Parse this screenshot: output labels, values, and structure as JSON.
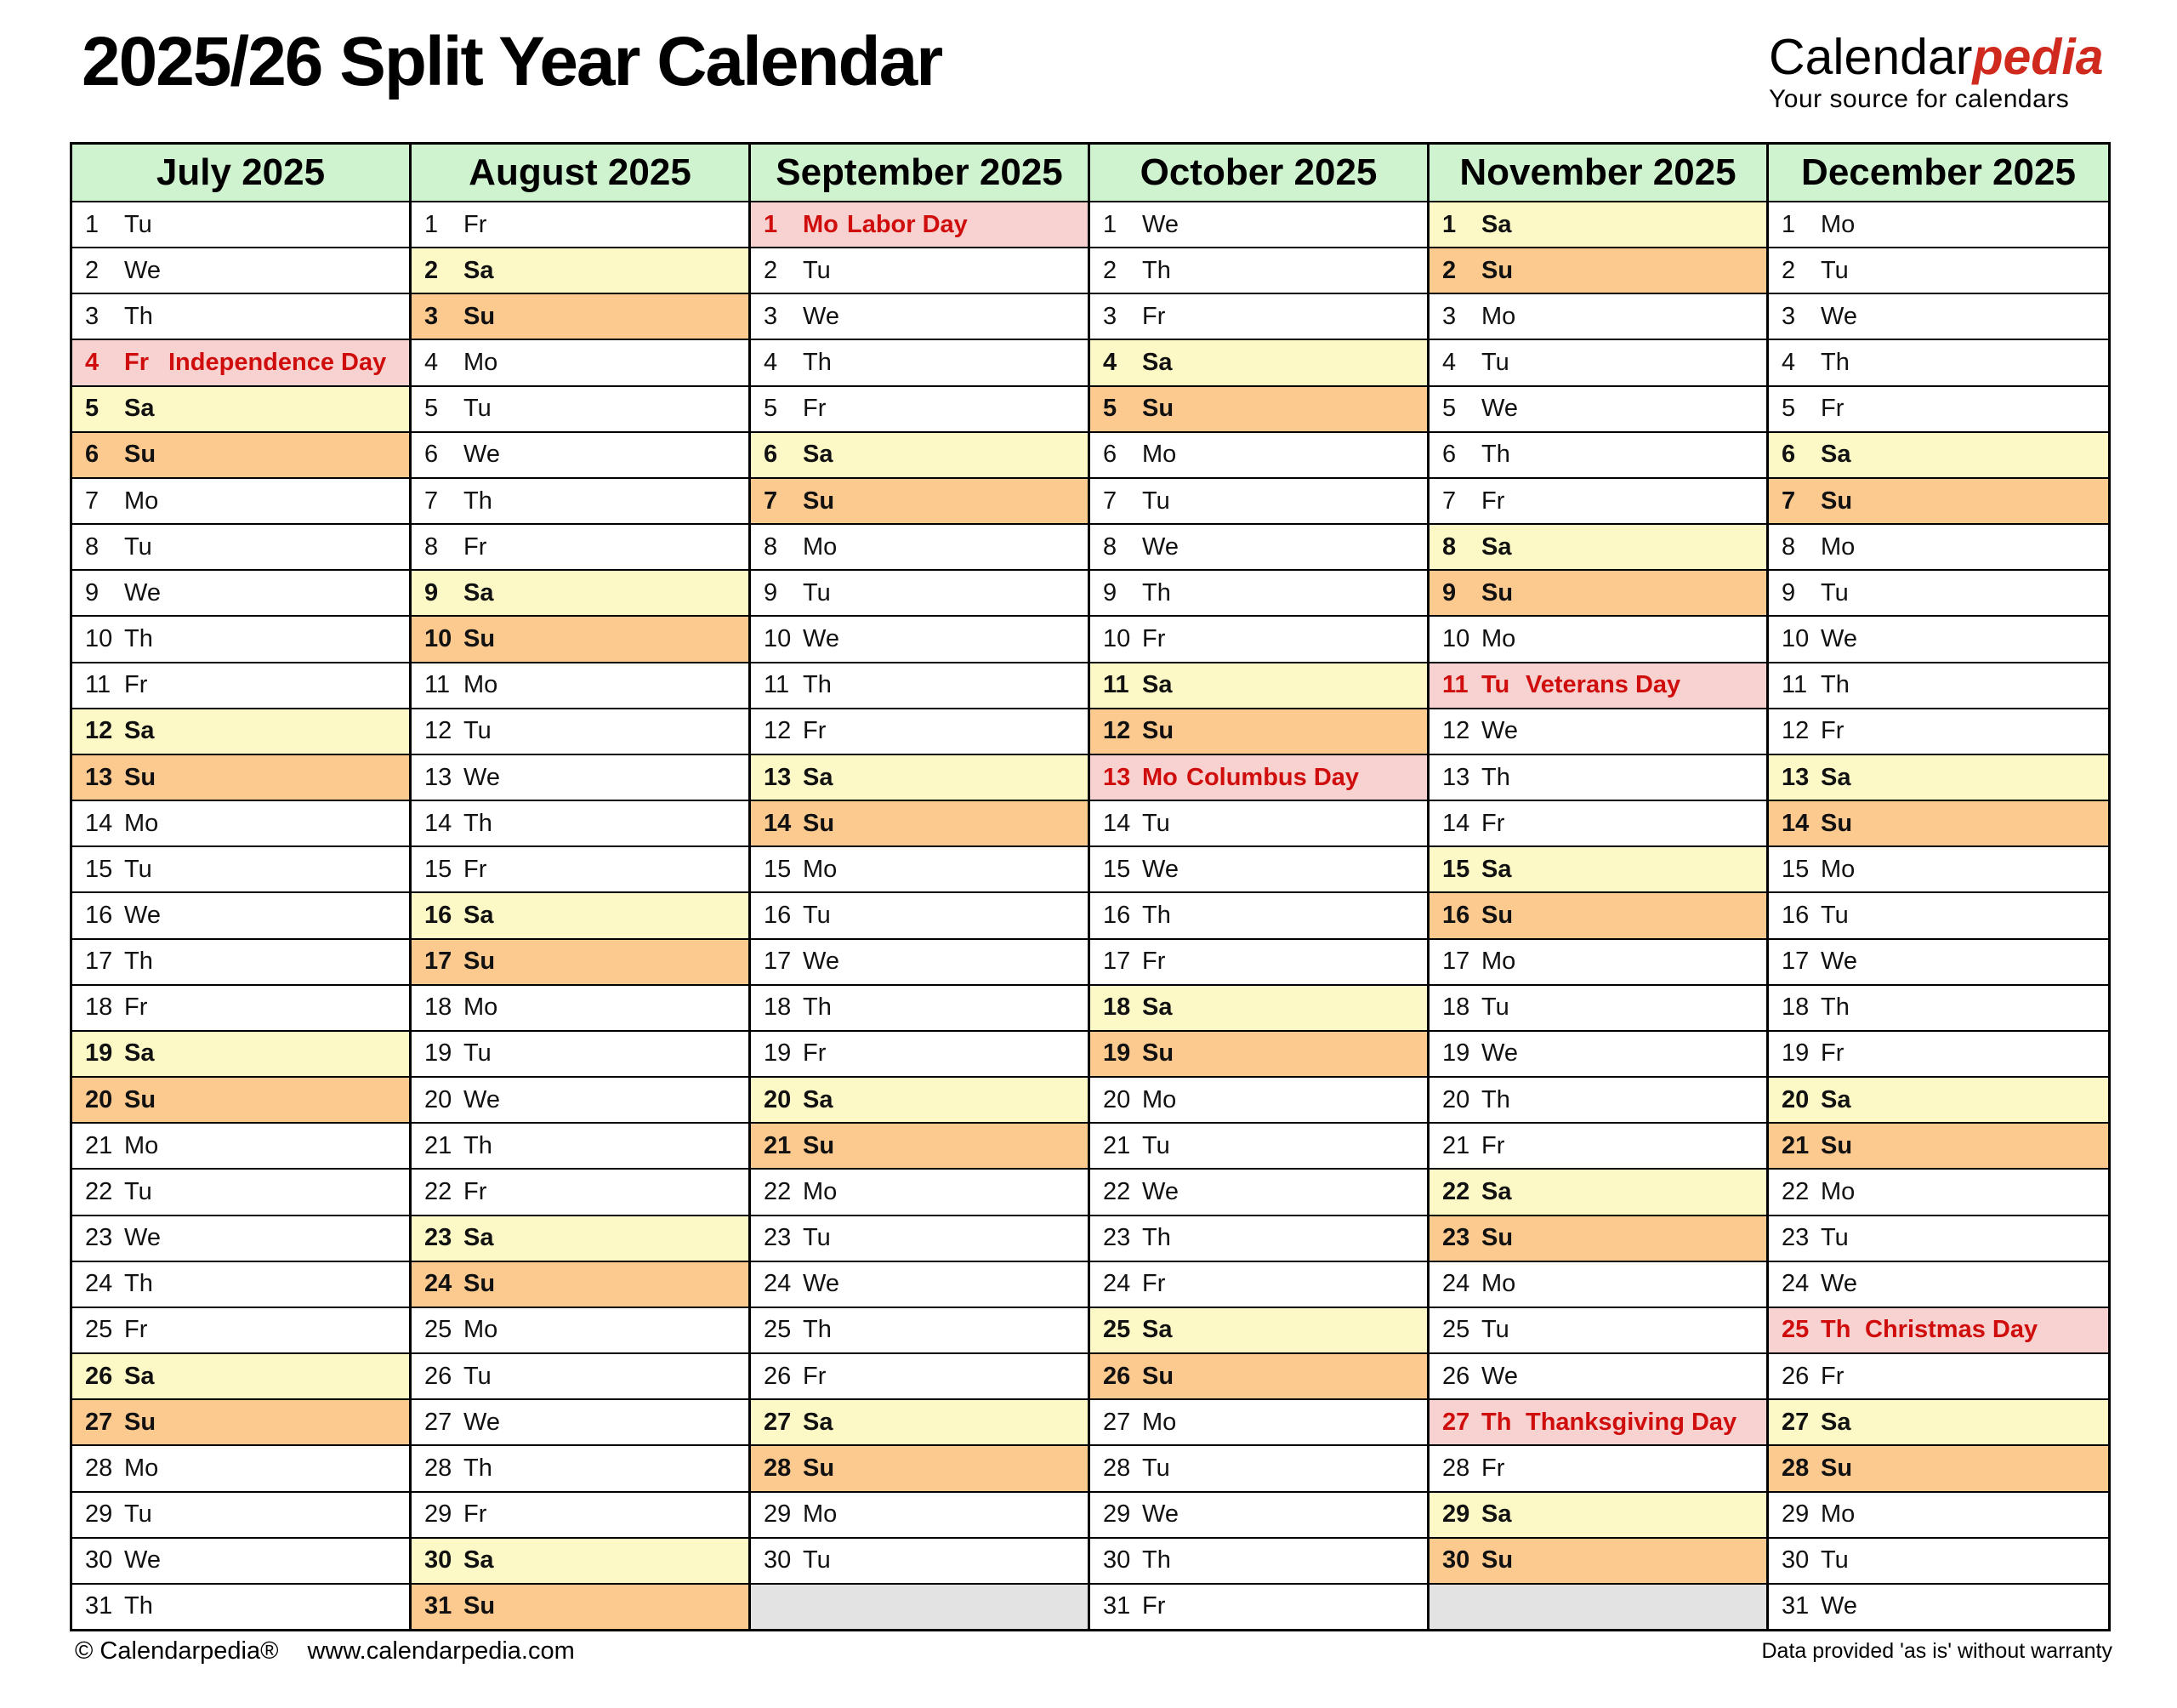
{
  "header": {
    "title": "2025/26 Split Year Calendar",
    "logo": {
      "part1": "Calendar",
      "part2": "pedia",
      "tagline": "Your source for calendars"
    }
  },
  "colors": {
    "month_header_green": "#cff2cf",
    "saturday_yellow": "#fdf9c6",
    "sunday_orange": "#fcc98f",
    "holiday_pink": "#f8d2d0",
    "holiday_red": "#cf0d0d",
    "empty_gray": "#e3e3e3",
    "logo_red": "#d02a1e"
  },
  "calendar": {
    "months": [
      {
        "name": "July 2025",
        "days": [
          {
            "d": 1,
            "w": "Tu"
          },
          {
            "d": 2,
            "w": "We"
          },
          {
            "d": 3,
            "w": "Th"
          },
          {
            "d": 4,
            "w": "Fr",
            "h": "Independence Day"
          },
          {
            "d": 5,
            "w": "Sa"
          },
          {
            "d": 6,
            "w": "Su"
          },
          {
            "d": 7,
            "w": "Mo"
          },
          {
            "d": 8,
            "w": "Tu"
          },
          {
            "d": 9,
            "w": "We"
          },
          {
            "d": 10,
            "w": "Th"
          },
          {
            "d": 11,
            "w": "Fr"
          },
          {
            "d": 12,
            "w": "Sa"
          },
          {
            "d": 13,
            "w": "Su"
          },
          {
            "d": 14,
            "w": "Mo"
          },
          {
            "d": 15,
            "w": "Tu"
          },
          {
            "d": 16,
            "w": "We"
          },
          {
            "d": 17,
            "w": "Th"
          },
          {
            "d": 18,
            "w": "Fr"
          },
          {
            "d": 19,
            "w": "Sa"
          },
          {
            "d": 20,
            "w": "Su"
          },
          {
            "d": 21,
            "w": "Mo"
          },
          {
            "d": 22,
            "w": "Tu"
          },
          {
            "d": 23,
            "w": "We"
          },
          {
            "d": 24,
            "w": "Th"
          },
          {
            "d": 25,
            "w": "Fr"
          },
          {
            "d": 26,
            "w": "Sa"
          },
          {
            "d": 27,
            "w": "Su"
          },
          {
            "d": 28,
            "w": "Mo"
          },
          {
            "d": 29,
            "w": "Tu"
          },
          {
            "d": 30,
            "w": "We"
          },
          {
            "d": 31,
            "w": "Th"
          }
        ]
      },
      {
        "name": "August 2025",
        "days": [
          {
            "d": 1,
            "w": "Fr"
          },
          {
            "d": 2,
            "w": "Sa"
          },
          {
            "d": 3,
            "w": "Su"
          },
          {
            "d": 4,
            "w": "Mo"
          },
          {
            "d": 5,
            "w": "Tu"
          },
          {
            "d": 6,
            "w": "We"
          },
          {
            "d": 7,
            "w": "Th"
          },
          {
            "d": 8,
            "w": "Fr"
          },
          {
            "d": 9,
            "w": "Sa"
          },
          {
            "d": 10,
            "w": "Su"
          },
          {
            "d": 11,
            "w": "Mo"
          },
          {
            "d": 12,
            "w": "Tu"
          },
          {
            "d": 13,
            "w": "We"
          },
          {
            "d": 14,
            "w": "Th"
          },
          {
            "d": 15,
            "w": "Fr"
          },
          {
            "d": 16,
            "w": "Sa"
          },
          {
            "d": 17,
            "w": "Su"
          },
          {
            "d": 18,
            "w": "Mo"
          },
          {
            "d": 19,
            "w": "Tu"
          },
          {
            "d": 20,
            "w": "We"
          },
          {
            "d": 21,
            "w": "Th"
          },
          {
            "d": 22,
            "w": "Fr"
          },
          {
            "d": 23,
            "w": "Sa"
          },
          {
            "d": 24,
            "w": "Su"
          },
          {
            "d": 25,
            "w": "Mo"
          },
          {
            "d": 26,
            "w": "Tu"
          },
          {
            "d": 27,
            "w": "We"
          },
          {
            "d": 28,
            "w": "Th"
          },
          {
            "d": 29,
            "w": "Fr"
          },
          {
            "d": 30,
            "w": "Sa"
          },
          {
            "d": 31,
            "w": "Su"
          }
        ]
      },
      {
        "name": "September 2025",
        "days": [
          {
            "d": 1,
            "w": "Mo",
            "h": "Labor Day"
          },
          {
            "d": 2,
            "w": "Tu"
          },
          {
            "d": 3,
            "w": "We"
          },
          {
            "d": 4,
            "w": "Th"
          },
          {
            "d": 5,
            "w": "Fr"
          },
          {
            "d": 6,
            "w": "Sa"
          },
          {
            "d": 7,
            "w": "Su"
          },
          {
            "d": 8,
            "w": "Mo"
          },
          {
            "d": 9,
            "w": "Tu"
          },
          {
            "d": 10,
            "w": "We"
          },
          {
            "d": 11,
            "w": "Th"
          },
          {
            "d": 12,
            "w": "Fr"
          },
          {
            "d": 13,
            "w": "Sa"
          },
          {
            "d": 14,
            "w": "Su"
          },
          {
            "d": 15,
            "w": "Mo"
          },
          {
            "d": 16,
            "w": "Tu"
          },
          {
            "d": 17,
            "w": "We"
          },
          {
            "d": 18,
            "w": "Th"
          },
          {
            "d": 19,
            "w": "Fr"
          },
          {
            "d": 20,
            "w": "Sa"
          },
          {
            "d": 21,
            "w": "Su"
          },
          {
            "d": 22,
            "w": "Mo"
          },
          {
            "d": 23,
            "w": "Tu"
          },
          {
            "d": 24,
            "w": "We"
          },
          {
            "d": 25,
            "w": "Th"
          },
          {
            "d": 26,
            "w": "Fr"
          },
          {
            "d": 27,
            "w": "Sa"
          },
          {
            "d": 28,
            "w": "Su"
          },
          {
            "d": 29,
            "w": "Mo"
          },
          {
            "d": 30,
            "w": "Tu"
          }
        ]
      },
      {
        "name": "October 2025",
        "days": [
          {
            "d": 1,
            "w": "We"
          },
          {
            "d": 2,
            "w": "Th"
          },
          {
            "d": 3,
            "w": "Fr"
          },
          {
            "d": 4,
            "w": "Sa"
          },
          {
            "d": 5,
            "w": "Su"
          },
          {
            "d": 6,
            "w": "Mo"
          },
          {
            "d": 7,
            "w": "Tu"
          },
          {
            "d": 8,
            "w": "We"
          },
          {
            "d": 9,
            "w": "Th"
          },
          {
            "d": 10,
            "w": "Fr"
          },
          {
            "d": 11,
            "w": "Sa"
          },
          {
            "d": 12,
            "w": "Su"
          },
          {
            "d": 13,
            "w": "Mo",
            "h": "Columbus Day"
          },
          {
            "d": 14,
            "w": "Tu"
          },
          {
            "d": 15,
            "w": "We"
          },
          {
            "d": 16,
            "w": "Th"
          },
          {
            "d": 17,
            "w": "Fr"
          },
          {
            "d": 18,
            "w": "Sa"
          },
          {
            "d": 19,
            "w": "Su"
          },
          {
            "d": 20,
            "w": "Mo"
          },
          {
            "d": 21,
            "w": "Tu"
          },
          {
            "d": 22,
            "w": "We"
          },
          {
            "d": 23,
            "w": "Th"
          },
          {
            "d": 24,
            "w": "Fr"
          },
          {
            "d": 25,
            "w": "Sa"
          },
          {
            "d": 26,
            "w": "Su"
          },
          {
            "d": 27,
            "w": "Mo"
          },
          {
            "d": 28,
            "w": "Tu"
          },
          {
            "d": 29,
            "w": "We"
          },
          {
            "d": 30,
            "w": "Th"
          },
          {
            "d": 31,
            "w": "Fr"
          }
        ]
      },
      {
        "name": "November 2025",
        "days": [
          {
            "d": 1,
            "w": "Sa"
          },
          {
            "d": 2,
            "w": "Su"
          },
          {
            "d": 3,
            "w": "Mo"
          },
          {
            "d": 4,
            "w": "Tu"
          },
          {
            "d": 5,
            "w": "We"
          },
          {
            "d": 6,
            "w": "Th"
          },
          {
            "d": 7,
            "w": "Fr"
          },
          {
            "d": 8,
            "w": "Sa"
          },
          {
            "d": 9,
            "w": "Su"
          },
          {
            "d": 10,
            "w": "Mo"
          },
          {
            "d": 11,
            "w": "Tu",
            "h": "Veterans Day"
          },
          {
            "d": 12,
            "w": "We"
          },
          {
            "d": 13,
            "w": "Th"
          },
          {
            "d": 14,
            "w": "Fr"
          },
          {
            "d": 15,
            "w": "Sa"
          },
          {
            "d": 16,
            "w": "Su"
          },
          {
            "d": 17,
            "w": "Mo"
          },
          {
            "d": 18,
            "w": "Tu"
          },
          {
            "d": 19,
            "w": "We"
          },
          {
            "d": 20,
            "w": "Th"
          },
          {
            "d": 21,
            "w": "Fr"
          },
          {
            "d": 22,
            "w": "Sa"
          },
          {
            "d": 23,
            "w": "Su"
          },
          {
            "d": 24,
            "w": "Mo"
          },
          {
            "d": 25,
            "w": "Tu"
          },
          {
            "d": 26,
            "w": "We"
          },
          {
            "d": 27,
            "w": "Th",
            "h": "Thanksgiving Day"
          },
          {
            "d": 28,
            "w": "Fr"
          },
          {
            "d": 29,
            "w": "Sa"
          },
          {
            "d": 30,
            "w": "Su"
          }
        ]
      },
      {
        "name": "December 2025",
        "days": [
          {
            "d": 1,
            "w": "Mo"
          },
          {
            "d": 2,
            "w": "Tu"
          },
          {
            "d": 3,
            "w": "We"
          },
          {
            "d": 4,
            "w": "Th"
          },
          {
            "d": 5,
            "w": "Fr"
          },
          {
            "d": 6,
            "w": "Sa"
          },
          {
            "d": 7,
            "w": "Su"
          },
          {
            "d": 8,
            "w": "Mo"
          },
          {
            "d": 9,
            "w": "Tu"
          },
          {
            "d": 10,
            "w": "We"
          },
          {
            "d": 11,
            "w": "Th"
          },
          {
            "d": 12,
            "w": "Fr"
          },
          {
            "d": 13,
            "w": "Sa"
          },
          {
            "d": 14,
            "w": "Su"
          },
          {
            "d": 15,
            "w": "Mo"
          },
          {
            "d": 16,
            "w": "Tu"
          },
          {
            "d": 17,
            "w": "We"
          },
          {
            "d": 18,
            "w": "Th"
          },
          {
            "d": 19,
            "w": "Fr"
          },
          {
            "d": 20,
            "w": "Sa"
          },
          {
            "d": 21,
            "w": "Su"
          },
          {
            "d": 22,
            "w": "Mo"
          },
          {
            "d": 23,
            "w": "Tu"
          },
          {
            "d": 24,
            "w": "We"
          },
          {
            "d": 25,
            "w": "Th",
            "h": "Christmas Day"
          },
          {
            "d": 26,
            "w": "Fr"
          },
          {
            "d": 27,
            "w": "Sa"
          },
          {
            "d": 28,
            "w": "Su"
          },
          {
            "d": 29,
            "w": "Mo"
          },
          {
            "d": 30,
            "w": "Tu"
          },
          {
            "d": 31,
            "w": "We"
          }
        ]
      }
    ]
  },
  "footer": {
    "left_copyright": "© Calendarpedia®",
    "left_url": "www.calendarpedia.com",
    "right": "Data provided 'as is' without warranty"
  }
}
